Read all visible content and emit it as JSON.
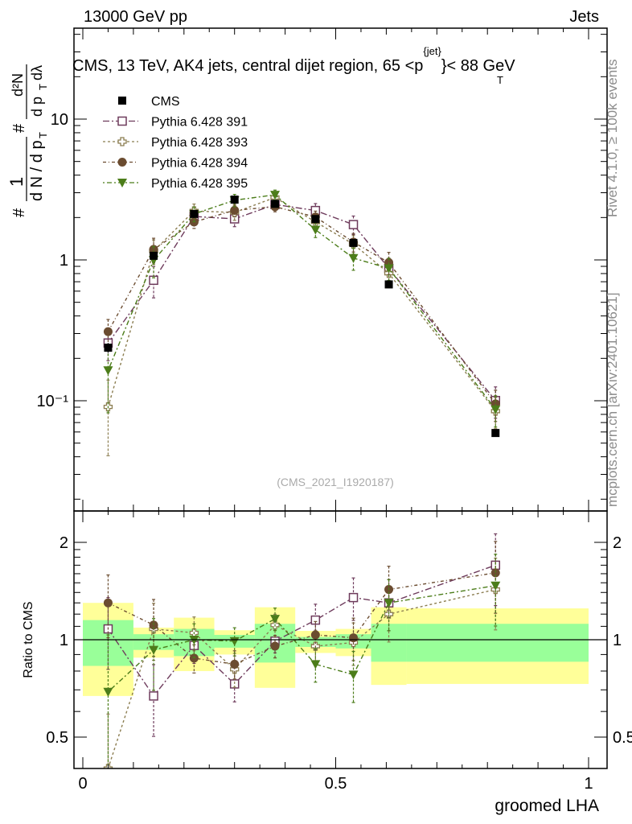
{
  "header": {
    "left": "13000 GeV pp",
    "right": "Jets"
  },
  "side_labels": {
    "rivet": "Rivet 4.1.0, ≥ 100k events",
    "mcplots": "mcplots.cern.ch [arXiv:2401.10621]"
  },
  "analysis_id": "(CMS_2021_I1920187)",
  "chart_data": {
    "type": "line",
    "title": "CMS, 13 TeV, AK4 jets, central dijet region, 65 <p_T^{jet}< 88 GeV",
    "title_parts": {
      "main": "CMS, 13 TeV, AK4 jets, central dijet region, 65 <p",
      "sup": "{jet}",
      "sub": "T",
      "tail": "}< 88 GeV"
    },
    "ylabel_parts": {
      "hash1": "#",
      "frac1_num": "1",
      "frac1_den": "d N / d p",
      "sub": "T",
      "hash2": "#",
      "frac2_num": "d²N",
      "frac2_den": "d p",
      "dlambda": "dλ"
    },
    "xlabel": "groomed LHA",
    "ratio_ylabel": "Ratio to CMS",
    "x": [
      0.05,
      0.14,
      0.22,
      0.3,
      0.38,
      0.46,
      0.535,
      0.605,
      0.816
    ],
    "bin_edges": [
      0,
      0.1,
      0.18,
      0.26,
      0.34,
      0.42,
      0.5,
      0.57,
      0.64,
      1.0
    ],
    "xlim": [
      0,
      1
    ],
    "ylim": [
      0.0165,
      44
    ],
    "yscale": "log",
    "ratio_ylim": [
      0.4,
      2.5
    ],
    "ratio_yscale": "log",
    "x_ticks": [
      {
        "v": 0,
        "label": "0"
      },
      {
        "v": 0.5,
        "label": "0.5"
      },
      {
        "v": 1,
        "label": "1"
      }
    ],
    "y_ticks": [
      {
        "v": 10,
        "label": "10"
      },
      {
        "v": 1,
        "label": "1"
      },
      {
        "v": 0.1,
        "label": "10⁻¹"
      }
    ],
    "ratio_ticks": [
      {
        "v": 2,
        "label": "2"
      },
      {
        "v": 1,
        "label": "1"
      },
      {
        "v": 0.5,
        "label": "0.5"
      }
    ],
    "data": {
      "name": "CMS",
      "color": "#000000",
      "values": [
        0.238,
        1.07,
        2.12,
        2.68,
        2.5,
        1.95,
        1.32,
        0.67,
        0.059
      ],
      "rel_err": [
        0.08,
        0.05,
        0.04,
        0.03,
        0.06,
        0.03,
        0.04,
        0.06,
        0.05
      ]
    },
    "bands": {
      "yellow_color": "#ffff99",
      "green_color": "#99ff99",
      "yellow": [
        [
          0.67,
          1.3
        ],
        [
          0.88,
          1.09
        ],
        [
          0.8,
          1.17
        ],
        [
          0.9,
          1.07
        ],
        [
          0.71,
          1.26
        ],
        [
          0.91,
          1.065
        ],
        [
          0.89,
          1.08
        ],
        [
          0.725,
          1.26
        ],
        [
          0.73,
          1.25
        ]
      ],
      "green": [
        [
          0.83,
          1.15
        ],
        [
          0.93,
          1.04
        ],
        [
          0.89,
          1.08
        ],
        [
          0.945,
          1.035
        ],
        [
          0.85,
          1.12
        ],
        [
          0.95,
          1.02
        ],
        [
          0.94,
          1.04
        ],
        [
          0.855,
          1.12
        ],
        [
          0.855,
          1.12
        ]
      ]
    },
    "series": [
      {
        "name": "Pythia 6.428 391",
        "color": "#6e3b5c",
        "marker": "open-square",
        "dash": "8,3,2,3",
        "ratio": [
          1.08,
          0.67,
          0.96,
          0.73,
          0.99,
          1.15,
          1.35,
          1.3,
          1.7
        ],
        "rel_err": [
          0.25,
          0.25,
          0.12,
          0.12,
          0.08,
          0.12,
          0.15,
          0.18,
          0.25
        ]
      },
      {
        "name": "Pythia 6.428 393",
        "color": "#8b7d50",
        "marker": "open-cross",
        "dash": "3,3",
        "ratio": [
          0.38,
          1.08,
          1.05,
          0.81,
          1.11,
          0.955,
          0.98,
          1.2,
          1.43
        ],
        "rel_err": [
          0.55,
          0.2,
          0.12,
          0.12,
          0.08,
          0.12,
          0.15,
          0.18,
          0.25
        ]
      },
      {
        "name": "Pythia 6.428 394",
        "color": "#6b4c30",
        "marker": "filled-circle",
        "dash": "4,3,1,3",
        "ratio": [
          1.3,
          1.11,
          0.877,
          0.84,
          0.955,
          1.035,
          1.014,
          1.43,
          1.61
        ],
        "rel_err": [
          0.22,
          0.2,
          0.1,
          0.1,
          0.08,
          0.1,
          0.15,
          0.18,
          0.25
        ]
      },
      {
        "name": "Pythia 6.428 395",
        "color": "#4c7d1a",
        "marker": "filled-triangle",
        "dash": "2,3,6,3",
        "ratio": [
          0.69,
          0.93,
          1.0,
          0.99,
          1.16,
          0.84,
          0.78,
          1.3,
          1.47
        ],
        "rel_err": [
          0.5,
          0.25,
          0.12,
          0.1,
          0.08,
          0.12,
          0.18,
          0.18,
          0.25
        ]
      }
    ],
    "legend_placement": "top-left"
  }
}
